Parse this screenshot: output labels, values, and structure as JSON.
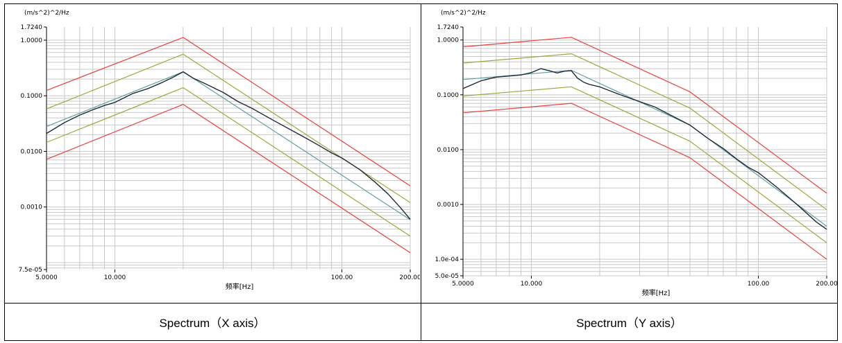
{
  "captions": {
    "left": "Spectrum（X axis）",
    "right": "Spectrum（Y axis）"
  },
  "colors": {
    "abort": "#e8403c",
    "alarm": "#a4a43c",
    "measured": "#1e2a38",
    "reference": "#5f9ea0",
    "grid": "#c8c8c8"
  },
  "chart_data": [
    {
      "type": "line",
      "ylabel": "(m/s^2)^2/Hz",
      "xlabel": "频率[Hz]",
      "log_x": true,
      "log_y": true,
      "xlim": [
        5,
        200
      ],
      "ylim": [
        7.5e-05,
        1.724
      ],
      "x_ticks": [
        5,
        10,
        100,
        200
      ],
      "x_tick_labels": [
        "5.0000",
        "10.000",
        "100.00",
        "200.00"
      ],
      "y_ticks": [
        1.724,
        1.0,
        0.1,
        0.01,
        0.001,
        7.5e-05
      ],
      "y_tick_labels": [
        "1.7240",
        "1.0000",
        "0.1000",
        "0.0100",
        "0.0010",
        "7.5e-05"
      ],
      "grid": true,
      "series": [
        {
          "role": "abort-upper",
          "x": [
            5,
            20,
            200
          ],
          "y": [
            0.125,
            1.12,
            0.0024
          ]
        },
        {
          "role": "alarm-upper",
          "x": [
            5,
            20,
            200
          ],
          "y": [
            0.058,
            0.56,
            0.0012
          ]
        },
        {
          "role": "alarm-lower",
          "x": [
            5,
            20,
            200
          ],
          "y": [
            0.0145,
            0.14,
            0.0003
          ]
        },
        {
          "role": "abort-lower",
          "x": [
            5,
            20,
            200
          ],
          "y": [
            0.0072,
            0.07,
            0.00015
          ]
        },
        {
          "role": "reference",
          "x": [
            5,
            20,
            200
          ],
          "y": [
            0.028,
            0.27,
            0.00059
          ]
        },
        {
          "role": "measured",
          "x": [
            5,
            6,
            7,
            8,
            9,
            10,
            12,
            14,
            16,
            18,
            20,
            22,
            25,
            30,
            35,
            40,
            50,
            60,
            70,
            80,
            90,
            100,
            120,
            140,
            160,
            180,
            200
          ],
          "y": [
            0.021,
            0.033,
            0.045,
            0.056,
            0.067,
            0.076,
            0.11,
            0.135,
            0.17,
            0.215,
            0.27,
            0.21,
            0.165,
            0.115,
            0.078,
            0.06,
            0.036,
            0.024,
            0.017,
            0.0125,
            0.0094,
            0.0076,
            0.0047,
            0.0028,
            0.0017,
            0.001,
            0.0006
          ]
        }
      ]
    },
    {
      "type": "line",
      "ylabel": "(m/s^2)^2/Hz",
      "xlabel": "频率[Hz]",
      "log_x": true,
      "log_y": true,
      "xlim": [
        5,
        200
      ],
      "ylim": [
        5e-05,
        1.724
      ],
      "x_ticks": [
        5,
        10,
        100,
        200
      ],
      "x_tick_labels": [
        "5.0000",
        "10.000",
        "100.00",
        "200.00"
      ],
      "y_ticks": [
        1.724,
        1.0,
        0.1,
        0.01,
        0.001,
        0.0001,
        5e-05
      ],
      "y_tick_labels": [
        "1.7240",
        "1.0000",
        "0.1000",
        "0.0100",
        "0.0010",
        "1.0e-04",
        "5.0e-05"
      ],
      "grid": true,
      "series": [
        {
          "role": "abort-upper",
          "x": [
            5,
            15,
            50,
            200
          ],
          "y": [
            0.75,
            1.12,
            0.113,
            0.0016
          ]
        },
        {
          "role": "alarm-upper",
          "x": [
            5,
            15,
            50,
            200
          ],
          "y": [
            0.38,
            0.56,
            0.057,
            0.0008
          ]
        },
        {
          "role": "alarm-lower",
          "x": [
            5,
            15,
            50,
            200
          ],
          "y": [
            0.095,
            0.14,
            0.0142,
            0.0002
          ]
        },
        {
          "role": "abort-lower",
          "x": [
            5,
            15,
            50,
            200
          ],
          "y": [
            0.047,
            0.07,
            0.0071,
            0.0001
          ]
        },
        {
          "role": "reference",
          "x": [
            5,
            15,
            50,
            200
          ],
          "y": [
            0.19,
            0.28,
            0.028,
            0.0004
          ]
        },
        {
          "role": "measured",
          "x": [
            5,
            6,
            7,
            8,
            9,
            10,
            11,
            12,
            13,
            14,
            15,
            16,
            17,
            18,
            20,
            22,
            25,
            30,
            35,
            40,
            50,
            60,
            70,
            80,
            90,
            100,
            120,
            150,
            180,
            200
          ],
          "y": [
            0.13,
            0.18,
            0.21,
            0.22,
            0.23,
            0.255,
            0.3,
            0.275,
            0.25,
            0.27,
            0.275,
            0.2,
            0.17,
            0.155,
            0.14,
            0.12,
            0.098,
            0.075,
            0.06,
            0.045,
            0.028,
            0.016,
            0.0105,
            0.0068,
            0.0048,
            0.0038,
            0.0021,
            0.00095,
            0.00048,
            0.00035
          ]
        }
      ]
    }
  ]
}
